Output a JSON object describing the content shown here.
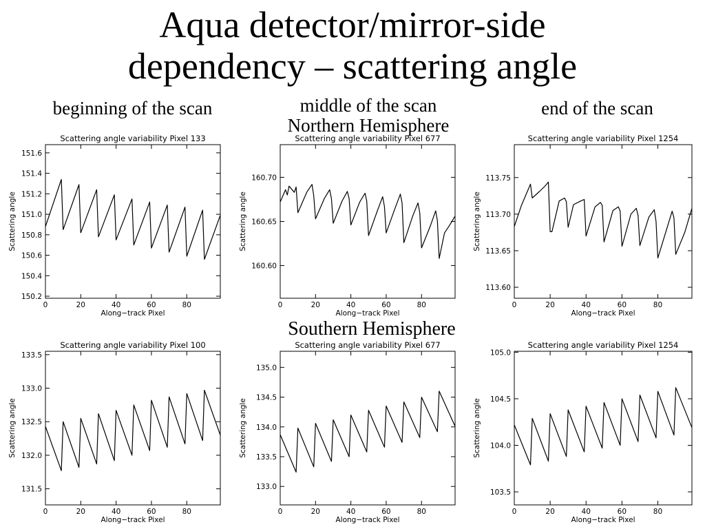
{
  "page": {
    "title_line1": "Aqua detector/mirror-side",
    "title_line2": "dependency – scattering angle",
    "col_begin": "beginning of the scan",
    "col_middle": "middle of the scan",
    "col_end": "end of the scan",
    "row_north": "Northern Hemisphere",
    "row_south": "Southern Hemisphere"
  },
  "chart_data": [
    {
      "type": "line",
      "title": "Scattering angle variability Pixel 133",
      "xlabel": "Along−track Pixel",
      "ylabel": "Scattering angle",
      "xlim": [
        0,
        99
      ],
      "ylim": [
        150.18,
        151.68
      ],
      "xticks": [
        0,
        20,
        40,
        60,
        80
      ],
      "yticks": [
        150.2,
        150.4,
        150.6,
        150.8,
        151.0,
        151.2,
        151.4,
        151.6
      ],
      "ytick_labels": [
        "150.2",
        "150.4",
        "150.6",
        "150.8",
        "151.0",
        "151.2",
        "151.4",
        "151.6"
      ],
      "grid": false,
      "series": [
        {
          "x": [
            0,
            9,
            10,
            19,
            20,
            29,
            30,
            39,
            40,
            49,
            50,
            59,
            60,
            69,
            70,
            79,
            80,
            89,
            90,
            99
          ],
          "y": [
            150.88,
            151.34,
            150.85,
            151.29,
            150.82,
            151.24,
            150.78,
            151.19,
            150.75,
            151.15,
            150.7,
            151.12,
            150.67,
            151.09,
            150.63,
            151.07,
            150.59,
            151.04,
            150.56,
            150.99
          ]
        }
      ]
    },
    {
      "type": "line",
      "title": "Scattering angle variability Pixel 677",
      "xlabel": "Along−track Pixel",
      "ylabel": "Scattering angle",
      "xlim": [
        0,
        99
      ],
      "ylim": [
        160.563,
        160.737
      ],
      "xticks": [
        0,
        20,
        40,
        60,
        80
      ],
      "yticks": [
        160.6,
        160.65,
        160.7
      ],
      "ytick_labels": [
        "160.60",
        "160.65",
        "160.70"
      ],
      "grid": false,
      "series": [
        {
          "x": [
            0,
            3,
            4,
            5,
            8,
            9,
            10,
            15,
            18,
            19,
            20,
            25,
            28,
            29,
            30,
            35,
            38,
            39,
            40,
            45,
            48,
            49,
            50,
            55,
            58,
            59,
            60,
            65,
            68,
            69,
            70,
            75,
            78,
            79,
            80,
            85,
            88,
            89,
            90,
            93,
            96,
            99
          ],
          "y": [
            160.672,
            160.686,
            160.68,
            160.69,
            160.683,
            160.689,
            160.66,
            160.683,
            160.692,
            160.679,
            160.653,
            160.676,
            160.686,
            160.676,
            160.648,
            160.673,
            160.684,
            160.676,
            160.646,
            160.672,
            160.682,
            160.673,
            160.634,
            160.662,
            160.678,
            160.667,
            160.637,
            160.665,
            160.681,
            160.671,
            160.626,
            160.656,
            160.671,
            160.66,
            160.62,
            160.645,
            160.662,
            160.651,
            160.608,
            160.637,
            160.646,
            160.656
          ]
        }
      ]
    },
    {
      "type": "line",
      "title": "Scattering angle variability Pixel 1254",
      "xlabel": "Along−track Pixel",
      "ylabel": "Scattering angle",
      "xlim": [
        0,
        99
      ],
      "ylim": [
        113.585,
        113.795
      ],
      "xticks": [
        0,
        20,
        40,
        60,
        80
      ],
      "yticks": [
        113.6,
        113.65,
        113.7,
        113.75
      ],
      "ytick_labels": [
        "113.60",
        "113.65",
        "113.70",
        "113.75"
      ],
      "grid": false,
      "series": [
        {
          "x": [
            0,
            4,
            9,
            10,
            14,
            17,
            19,
            20,
            21,
            25,
            28,
            29,
            30,
            33,
            37,
            39,
            40,
            45,
            48,
            49,
            50,
            55,
            58,
            59,
            60,
            65,
            68,
            69,
            70,
            75,
            78,
            79,
            80,
            85,
            88,
            89,
            90,
            95,
            99
          ],
          "y": [
            113.683,
            113.712,
            113.741,
            113.722,
            113.731,
            113.738,
            113.744,
            113.676,
            113.676,
            113.718,
            113.722,
            113.717,
            113.682,
            113.713,
            113.718,
            113.72,
            113.67,
            113.71,
            113.716,
            113.712,
            113.662,
            113.705,
            113.71,
            113.704,
            113.656,
            113.7,
            113.708,
            113.698,
            113.657,
            113.696,
            113.706,
            113.69,
            113.64,
            113.68,
            113.704,
            113.695,
            113.645,
            113.675,
            113.708
          ]
        }
      ]
    },
    {
      "type": "line",
      "title": "Scattering angle variability Pixel 100",
      "xlabel": "Along−track Pixel",
      "ylabel": "Scattering angle",
      "xlim": [
        0,
        99
      ],
      "ylim": [
        131.26,
        133.55
      ],
      "xticks": [
        0,
        20,
        40,
        60,
        80
      ],
      "yticks": [
        131.5,
        132.0,
        132.5,
        133.0,
        133.5
      ],
      "ytick_labels": [
        "131.5",
        "132.0",
        "132.5",
        "133.0",
        "133.5"
      ],
      "grid": false,
      "series": [
        {
          "x": [
            0,
            9,
            10,
            19,
            20,
            29,
            30,
            39,
            40,
            49,
            50,
            59,
            60,
            69,
            70,
            79,
            80,
            89,
            90,
            99
          ],
          "y": [
            132.43,
            131.77,
            132.5,
            131.82,
            132.55,
            131.87,
            132.62,
            131.92,
            132.67,
            132.0,
            132.75,
            132.07,
            132.82,
            132.12,
            132.87,
            132.17,
            132.92,
            132.22,
            132.97,
            132.3
          ]
        }
      ]
    },
    {
      "type": "line",
      "title": "Scattering angle variability Pixel 677",
      "xlabel": "Along−track Pixel",
      "ylabel": "Scattering angle",
      "xlim": [
        0,
        99
      ],
      "ylim": [
        132.69,
        135.27
      ],
      "xticks": [
        0,
        20,
        40,
        60,
        80
      ],
      "yticks": [
        133.0,
        133.5,
        134.0,
        134.5,
        135.0
      ],
      "ytick_labels": [
        "133.0",
        "133.5",
        "134.0",
        "134.5",
        "135.0"
      ],
      "grid": false,
      "series": [
        {
          "x": [
            0,
            9,
            10,
            19,
            20,
            29,
            30,
            39,
            40,
            49,
            50,
            59,
            60,
            69,
            70,
            79,
            80,
            89,
            90,
            99
          ],
          "y": [
            133.87,
            133.24,
            133.98,
            133.33,
            134.06,
            133.42,
            134.12,
            133.5,
            134.2,
            133.58,
            134.28,
            133.66,
            134.35,
            133.74,
            134.42,
            133.82,
            134.5,
            133.92,
            134.6,
            134.01
          ]
        }
      ]
    },
    {
      "type": "line",
      "title": "Scattering angle variability Pixel 1254",
      "xlabel": "Along−track Pixel",
      "ylabel": "Scattering angle",
      "xlim": [
        0,
        99
      ],
      "ylim": [
        103.36,
        105.01
      ],
      "xticks": [
        0,
        20,
        40,
        60,
        80
      ],
      "yticks": [
        103.5,
        104.0,
        104.5,
        105.0
      ],
      "ytick_labels": [
        "103.5",
        "104.0",
        "104.5",
        "105.0"
      ],
      "grid": false,
      "series": [
        {
          "x": [
            0,
            9,
            10,
            19,
            20,
            29,
            30,
            39,
            40,
            49,
            50,
            59,
            60,
            69,
            70,
            79,
            80,
            89,
            90,
            99
          ],
          "y": [
            104.22,
            103.79,
            104.29,
            103.83,
            104.34,
            103.88,
            104.38,
            103.93,
            104.42,
            103.97,
            104.46,
            104.0,
            104.5,
            104.04,
            104.54,
            104.08,
            104.58,
            104.11,
            104.62,
            104.19
          ]
        }
      ]
    }
  ]
}
